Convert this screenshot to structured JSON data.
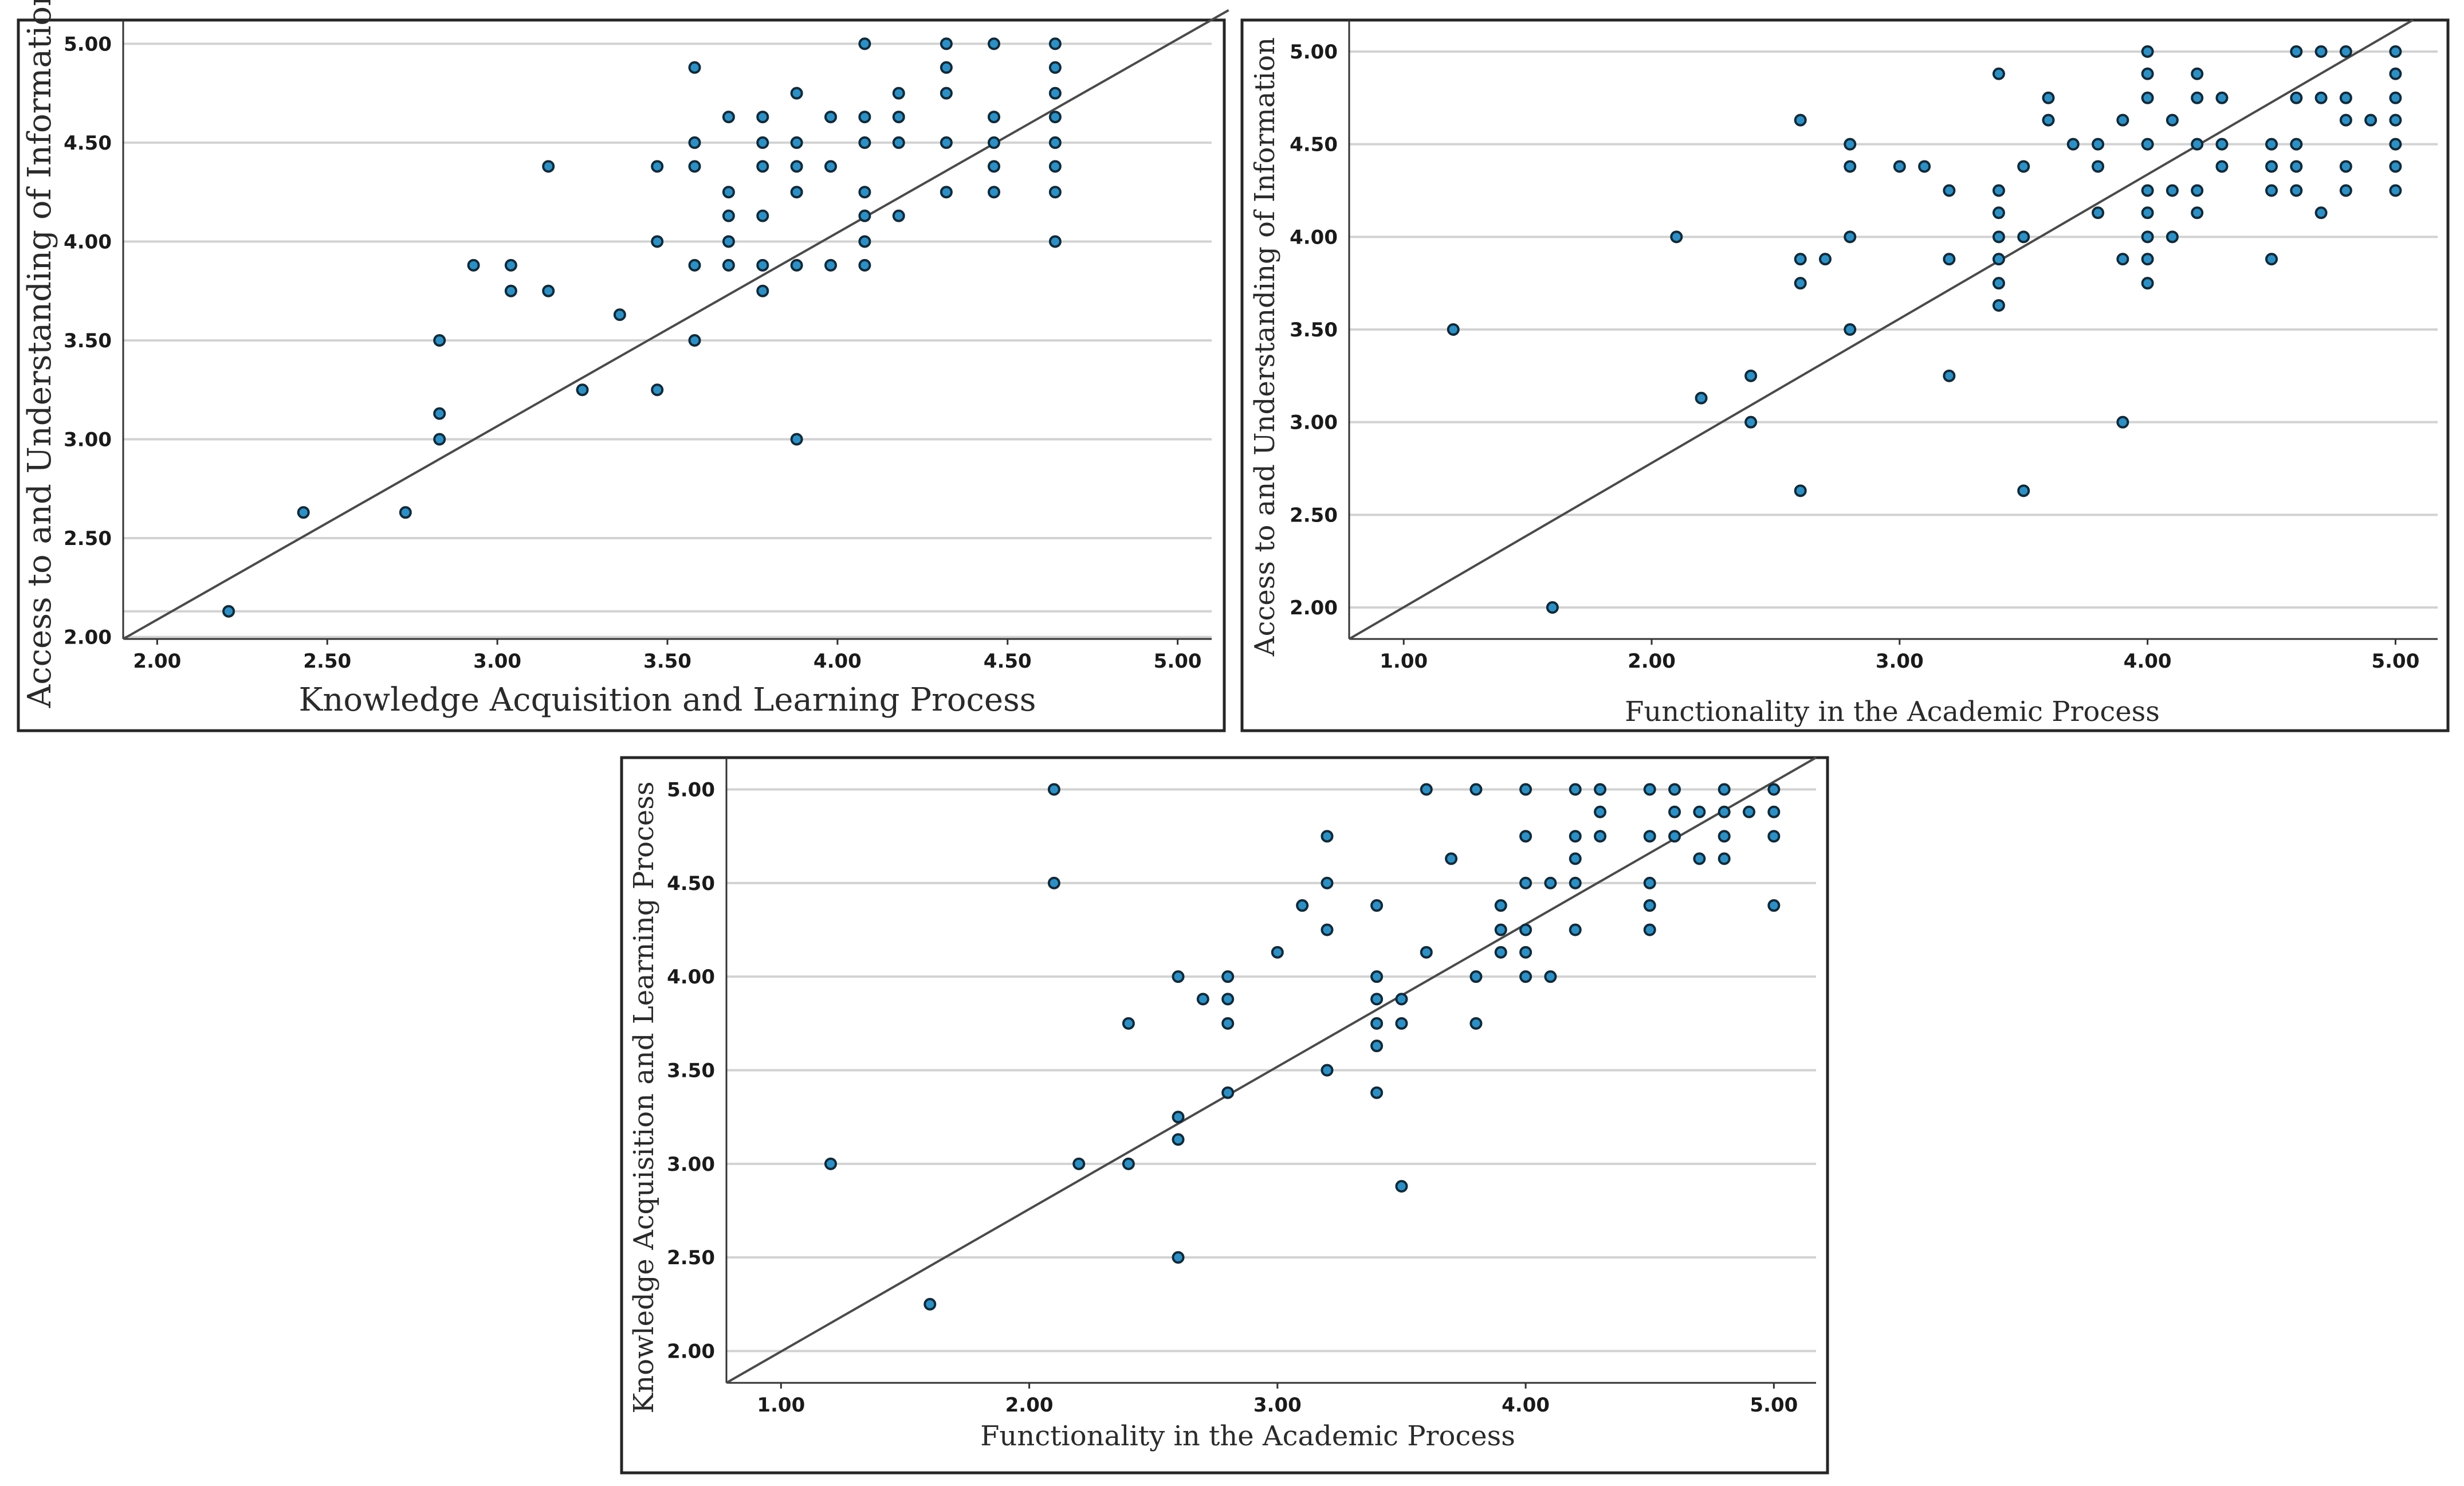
{
  "chart_data": [
    {
      "type": "scatter",
      "title": "",
      "xlabel": "Knowledge Acquisition and Learning Process",
      "ylabel": "Access to and Understanding of Information",
      "xlim": [
        1.9,
        5.1
      ],
      "ylim": [
        1.99,
        5.12
      ],
      "x_ticks": [
        "2.00",
        "2.50",
        "3.00",
        "3.50",
        "4.00",
        "4.50",
        "5.00"
      ],
      "y_ticks": [
        "2.00",
        "2.50",
        "3.00",
        "3.50",
        "4.00",
        "4.50",
        "5.00"
      ],
      "grid": true,
      "fit_line": [
        [
          1.9,
          1.99
        ],
        [
          5.15,
          5.17
        ]
      ],
      "points": [
        [
          2.21,
          2.13
        ],
        [
          2.43,
          2.63
        ],
        [
          2.73,
          2.63
        ],
        [
          2.83,
          3.0
        ],
        [
          2.83,
          3.13
        ],
        [
          2.83,
          3.5
        ],
        [
          2.93,
          3.88
        ],
        [
          3.04,
          3.88
        ],
        [
          3.04,
          3.75
        ],
        [
          3.15,
          3.75
        ],
        [
          3.15,
          4.38
        ],
        [
          3.25,
          3.25
        ],
        [
          3.36,
          3.63
        ],
        [
          3.47,
          3.25
        ],
        [
          3.47,
          4.0
        ],
        [
          3.47,
          4.38
        ],
        [
          3.58,
          3.5
        ],
        [
          3.58,
          3.88
        ],
        [
          3.58,
          4.38
        ],
        [
          3.58,
          4.5
        ],
        [
          3.58,
          4.88
        ],
        [
          3.68,
          3.88
        ],
        [
          3.68,
          4.0
        ],
        [
          3.68,
          4.13
        ],
        [
          3.68,
          4.25
        ],
        [
          3.68,
          4.63
        ],
        [
          3.78,
          3.75
        ],
        [
          3.78,
          3.88
        ],
        [
          3.78,
          4.13
        ],
        [
          3.78,
          4.38
        ],
        [
          3.78,
          4.5
        ],
        [
          3.78,
          4.63
        ],
        [
          3.88,
          3.0
        ],
        [
          3.88,
          3.88
        ],
        [
          3.88,
          4.25
        ],
        [
          3.88,
          4.38
        ],
        [
          3.88,
          4.5
        ],
        [
          3.88,
          4.75
        ],
        [
          3.98,
          3.88
        ],
        [
          3.98,
          4.38
        ],
        [
          3.98,
          4.63
        ],
        [
          4.08,
          3.88
        ],
        [
          4.08,
          4.0
        ],
        [
          4.08,
          4.13
        ],
        [
          4.08,
          4.25
        ],
        [
          4.08,
          4.5
        ],
        [
          4.08,
          4.63
        ],
        [
          4.08,
          5.0
        ],
        [
          4.18,
          4.13
        ],
        [
          4.18,
          4.5
        ],
        [
          4.18,
          4.63
        ],
        [
          4.18,
          4.75
        ],
        [
          4.32,
          4.25
        ],
        [
          4.32,
          4.5
        ],
        [
          4.32,
          4.75
        ],
        [
          4.32,
          4.88
        ],
        [
          4.32,
          5.0
        ],
        [
          4.46,
          4.25
        ],
        [
          4.46,
          4.38
        ],
        [
          4.46,
          4.5
        ],
        [
          4.46,
          4.63
        ],
        [
          4.46,
          5.0
        ],
        [
          4.64,
          4.0
        ],
        [
          4.64,
          4.25
        ],
        [
          4.64,
          4.38
        ],
        [
          4.64,
          4.5
        ],
        [
          4.64,
          4.63
        ],
        [
          4.64,
          4.75
        ],
        [
          4.64,
          4.88
        ],
        [
          4.64,
          5.0
        ]
      ]
    },
    {
      "type": "scatter",
      "title": "",
      "xlabel": "Functionality in the Academic Process",
      "ylabel": "Access to and Understanding of Information",
      "xlim": [
        0.78,
        5.17
      ],
      "ylim": [
        1.83,
        5.17
      ],
      "x_ticks": [
        "1.00",
        "2.00",
        "3.00",
        "4.00",
        "5.00"
      ],
      "y_ticks": [
        "2.00",
        "2.50",
        "3.00",
        "3.50",
        "4.00",
        "4.50",
        "5.00"
      ],
      "grid": true,
      "fit_line": [
        [
          0.78,
          1.83
        ],
        [
          5.07,
          5.17
        ]
      ],
      "points": [
        [
          1.2,
          3.5
        ],
        [
          1.6,
          2.0
        ],
        [
          2.1,
          4.0
        ],
        [
          2.2,
          3.13
        ],
        [
          2.4,
          3.0
        ],
        [
          2.4,
          3.25
        ],
        [
          2.6,
          2.63
        ],
        [
          2.6,
          3.75
        ],
        [
          2.6,
          3.88
        ],
        [
          2.6,
          4.63
        ],
        [
          2.7,
          3.88
        ],
        [
          2.8,
          3.5
        ],
        [
          2.8,
          4.0
        ],
        [
          2.8,
          4.38
        ],
        [
          2.8,
          4.5
        ],
        [
          3.0,
          4.38
        ],
        [
          3.1,
          4.38
        ],
        [
          3.2,
          3.25
        ],
        [
          3.2,
          3.88
        ],
        [
          3.2,
          4.25
        ],
        [
          3.4,
          3.63
        ],
        [
          3.4,
          3.75
        ],
        [
          3.4,
          3.88
        ],
        [
          3.4,
          4.0
        ],
        [
          3.4,
          4.13
        ],
        [
          3.4,
          4.25
        ],
        [
          3.4,
          4.88
        ],
        [
          3.5,
          2.63
        ],
        [
          3.5,
          4.0
        ],
        [
          3.5,
          4.38
        ],
        [
          3.6,
          4.63
        ],
        [
          3.6,
          4.75
        ],
        [
          3.7,
          4.5
        ],
        [
          3.8,
          4.13
        ],
        [
          3.8,
          4.38
        ],
        [
          3.8,
          4.5
        ],
        [
          3.9,
          3.0
        ],
        [
          3.9,
          3.88
        ],
        [
          3.9,
          4.63
        ],
        [
          4.0,
          3.75
        ],
        [
          4.0,
          3.88
        ],
        [
          4.0,
          4.0
        ],
        [
          4.0,
          4.13
        ],
        [
          4.0,
          4.25
        ],
        [
          4.0,
          4.5
        ],
        [
          4.0,
          4.75
        ],
        [
          4.0,
          4.88
        ],
        [
          4.0,
          5.0
        ],
        [
          4.1,
          4.0
        ],
        [
          4.1,
          4.25
        ],
        [
          4.1,
          4.63
        ],
        [
          4.2,
          4.13
        ],
        [
          4.2,
          4.25
        ],
        [
          4.2,
          4.5
        ],
        [
          4.2,
          4.75
        ],
        [
          4.2,
          4.88
        ],
        [
          4.3,
          4.38
        ],
        [
          4.3,
          4.5
        ],
        [
          4.3,
          4.75
        ],
        [
          4.5,
          3.88
        ],
        [
          4.5,
          4.25
        ],
        [
          4.5,
          4.38
        ],
        [
          4.5,
          4.5
        ],
        [
          4.6,
          4.25
        ],
        [
          4.6,
          4.38
        ],
        [
          4.6,
          4.5
        ],
        [
          4.6,
          4.75
        ],
        [
          4.6,
          5.0
        ],
        [
          4.7,
          4.13
        ],
        [
          4.7,
          4.75
        ],
        [
          4.7,
          5.0
        ],
        [
          4.8,
          4.25
        ],
        [
          4.8,
          4.38
        ],
        [
          4.8,
          4.63
        ],
        [
          4.8,
          4.75
        ],
        [
          4.8,
          5.0
        ],
        [
          4.9,
          4.63
        ],
        [
          5.0,
          4.25
        ],
        [
          5.0,
          4.38
        ],
        [
          5.0,
          4.5
        ],
        [
          5.0,
          4.63
        ],
        [
          5.0,
          4.75
        ],
        [
          5.0,
          4.88
        ],
        [
          5.0,
          5.0
        ]
      ]
    },
    {
      "type": "scatter",
      "title": "",
      "xlabel": "Functionality in the Academic Process",
      "ylabel": "Knowledge Acquisition and Learning Process",
      "xlim": [
        0.78,
        5.17
      ],
      "ylim": [
        1.83,
        5.17
      ],
      "x_ticks": [
        "1.00",
        "2.00",
        "3.00",
        "4.00",
        "5.00"
      ],
      "y_ticks": [
        "2.00",
        "2.50",
        "3.00",
        "3.50",
        "4.00",
        "4.50",
        "5.00"
      ],
      "grid": true,
      "fit_line": [
        [
          0.78,
          1.83
        ],
        [
          5.17,
          5.17
        ]
      ],
      "points": [
        [
          1.2,
          3.0
        ],
        [
          1.6,
          2.25
        ],
        [
          2.1,
          4.5
        ],
        [
          2.1,
          5.0
        ],
        [
          2.2,
          3.0
        ],
        [
          2.4,
          3.0
        ],
        [
          2.4,
          3.75
        ],
        [
          2.6,
          2.5
        ],
        [
          2.6,
          3.13
        ],
        [
          2.6,
          3.25
        ],
        [
          2.6,
          4.0
        ],
        [
          2.7,
          3.88
        ],
        [
          2.8,
          3.38
        ],
        [
          2.8,
          3.75
        ],
        [
          2.8,
          3.88
        ],
        [
          2.8,
          4.0
        ],
        [
          3.0,
          4.13
        ],
        [
          3.1,
          4.38
        ],
        [
          3.2,
          3.5
        ],
        [
          3.2,
          4.25
        ],
        [
          3.2,
          4.5
        ],
        [
          3.2,
          4.75
        ],
        [
          3.4,
          3.38
        ],
        [
          3.4,
          3.63
        ],
        [
          3.4,
          3.75
        ],
        [
          3.4,
          3.88
        ],
        [
          3.4,
          4.0
        ],
        [
          3.4,
          4.38
        ],
        [
          3.5,
          2.88
        ],
        [
          3.5,
          3.75
        ],
        [
          3.5,
          3.88
        ],
        [
          3.6,
          4.13
        ],
        [
          3.6,
          5.0
        ],
        [
          3.7,
          4.63
        ],
        [
          3.8,
          3.75
        ],
        [
          3.8,
          4.0
        ],
        [
          3.8,
          5.0
        ],
        [
          3.9,
          4.13
        ],
        [
          3.9,
          4.25
        ],
        [
          3.9,
          4.38
        ],
        [
          4.0,
          4.0
        ],
        [
          4.0,
          4.13
        ],
        [
          4.0,
          4.25
        ],
        [
          4.0,
          4.5
        ],
        [
          4.0,
          4.75
        ],
        [
          4.0,
          5.0
        ],
        [
          4.1,
          4.0
        ],
        [
          4.1,
          4.5
        ],
        [
          4.2,
          4.25
        ],
        [
          4.2,
          4.5
        ],
        [
          4.2,
          4.63
        ],
        [
          4.2,
          4.75
        ],
        [
          4.2,
          5.0
        ],
        [
          4.3,
          4.75
        ],
        [
          4.3,
          4.88
        ],
        [
          4.3,
          5.0
        ],
        [
          4.5,
          4.25
        ],
        [
          4.5,
          4.38
        ],
        [
          4.5,
          4.5
        ],
        [
          4.5,
          4.75
        ],
        [
          4.5,
          5.0
        ],
        [
          4.6,
          4.75
        ],
        [
          4.6,
          4.88
        ],
        [
          4.6,
          5.0
        ],
        [
          4.7,
          4.63
        ],
        [
          4.7,
          4.88
        ],
        [
          4.8,
          4.63
        ],
        [
          4.8,
          4.75
        ],
        [
          4.8,
          4.88
        ],
        [
          4.8,
          5.0
        ],
        [
          4.9,
          4.88
        ],
        [
          5.0,
          4.38
        ],
        [
          5.0,
          4.75
        ],
        [
          5.0,
          4.88
        ],
        [
          5.0,
          5.0
        ]
      ]
    }
  ]
}
